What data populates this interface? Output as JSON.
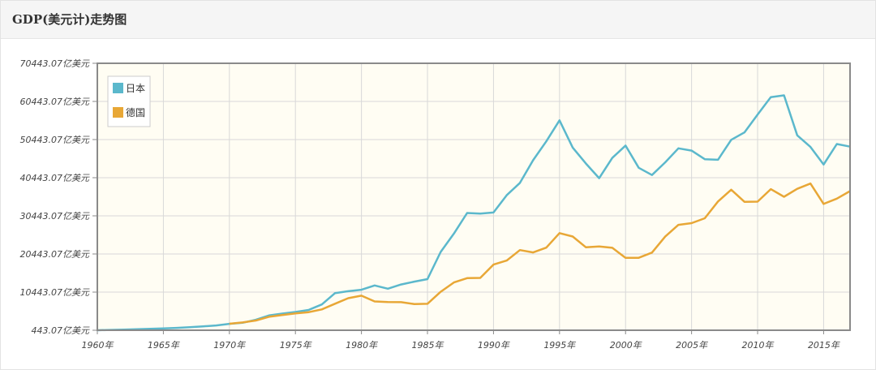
{
  "header": {
    "title": "GDP(美元计)走势图"
  },
  "chart_data": {
    "type": "line",
    "title": "GDP(美元计)走势图",
    "xlabel": "",
    "ylabel": "",
    "xlim": [
      1960,
      2017
    ],
    "ylim": [
      443.07,
      70443.07
    ],
    "yticks": [
      {
        "value": 70443.07,
        "label": "70443.07亿美元"
      },
      {
        "value": 60443.07,
        "label": "60443.07亿美元"
      },
      {
        "value": 50443.07,
        "label": "50443.07亿美元"
      },
      {
        "value": 40443.07,
        "label": "40443.07亿美元"
      },
      {
        "value": 30443.07,
        "label": "30443.07亿美元"
      },
      {
        "value": 20443.07,
        "label": "20443.07亿美元"
      },
      {
        "value": 10443.07,
        "label": "10443.07亿美元"
      },
      {
        "value": 443.07,
        "label": "443.07亿美元"
      }
    ],
    "xticks": [
      {
        "value": 1960,
        "label": "1960年"
      },
      {
        "value": 1965,
        "label": "1965年"
      },
      {
        "value": 1970,
        "label": "1970年"
      },
      {
        "value": 1975,
        "label": "1975年"
      },
      {
        "value": 1980,
        "label": "1980年"
      },
      {
        "value": 1985,
        "label": "1985年"
      },
      {
        "value": 1990,
        "label": "1990年"
      },
      {
        "value": 1995,
        "label": "1995年"
      },
      {
        "value": 2000,
        "label": "2000年"
      },
      {
        "value": 2005,
        "label": "2005年"
      },
      {
        "value": 2010,
        "label": "2010年"
      },
      {
        "value": 2015,
        "label": "2015年"
      }
    ],
    "grid": true,
    "legend_position": "top-left",
    "series": [
      {
        "name": "日本",
        "color": "#5bb8cc",
        "x": [
          1960,
          1961,
          1962,
          1963,
          1964,
          1965,
          1966,
          1967,
          1968,
          1969,
          1970,
          1971,
          1972,
          1973,
          1974,
          1975,
          1976,
          1977,
          1978,
          1979,
          1980,
          1981,
          1982,
          1983,
          1984,
          1985,
          1986,
          1987,
          1988,
          1989,
          1990,
          1991,
          1992,
          1993,
          1994,
          1995,
          1996,
          1997,
          1998,
          1999,
          2000,
          2001,
          2002,
          2003,
          2004,
          2005,
          2006,
          2007,
          2008,
          2009,
          2010,
          2011,
          2012,
          2013,
          2014,
          2015,
          2016,
          2017
        ],
        "values": [
          443,
          537,
          609,
          700,
          815,
          909,
          1062,
          1237,
          1464,
          1709,
          2125,
          2403,
          3183,
          4316,
          4800,
          5239,
          5767,
          7213,
          10188,
          10684,
          11050,
          12193,
          11341,
          12436,
          13185,
          13855,
          20967,
          25788,
          31190,
          31035,
          31325,
          35845,
          39088,
          45034,
          49983,
          55490,
          48335,
          44143,
          40325,
          45625,
          48875,
          43036,
          41150,
          44462,
          48150,
          47554,
          45303,
          45152,
          50379,
          52313,
          57001,
          61575,
          62032,
          51557,
          48504,
          43895,
          49265,
          48599
        ]
      },
      {
        "name": "德国",
        "color": "#e8a736",
        "x": [
          1970,
          1971,
          1972,
          1973,
          1974,
          1975,
          1976,
          1977,
          1978,
          1979,
          1980,
          1981,
          1982,
          1983,
          1984,
          1985,
          1986,
          1987,
          1988,
          1989,
          1990,
          1991,
          1992,
          1993,
          1994,
          1995,
          1996,
          1997,
          1998,
          1999,
          2000,
          2001,
          2002,
          2003,
          2004,
          2005,
          2006,
          2007,
          2008,
          2009,
          2010,
          2011,
          2012,
          2013,
          2014,
          2015,
          2016,
          2017
        ],
        "values": [
          2150,
          2490,
          2999,
          3984,
          4453,
          4879,
          5191,
          5918,
          7408,
          8845,
          9497,
          8003,
          7819,
          7801,
          7322,
          7382,
          10533,
          12985,
          14097,
          14160,
          17649,
          18728,
          21467,
          20854,
          22095,
          25911,
          25028,
          22195,
          22390,
          22055,
          19434,
          19452,
          20811,
          24992,
          28091,
          28527,
          29800,
          34214,
          37303,
          34127,
          34172,
          37445,
          35439,
          37528,
          38902,
          33570,
          34952,
          36937
        ]
      }
    ]
  }
}
